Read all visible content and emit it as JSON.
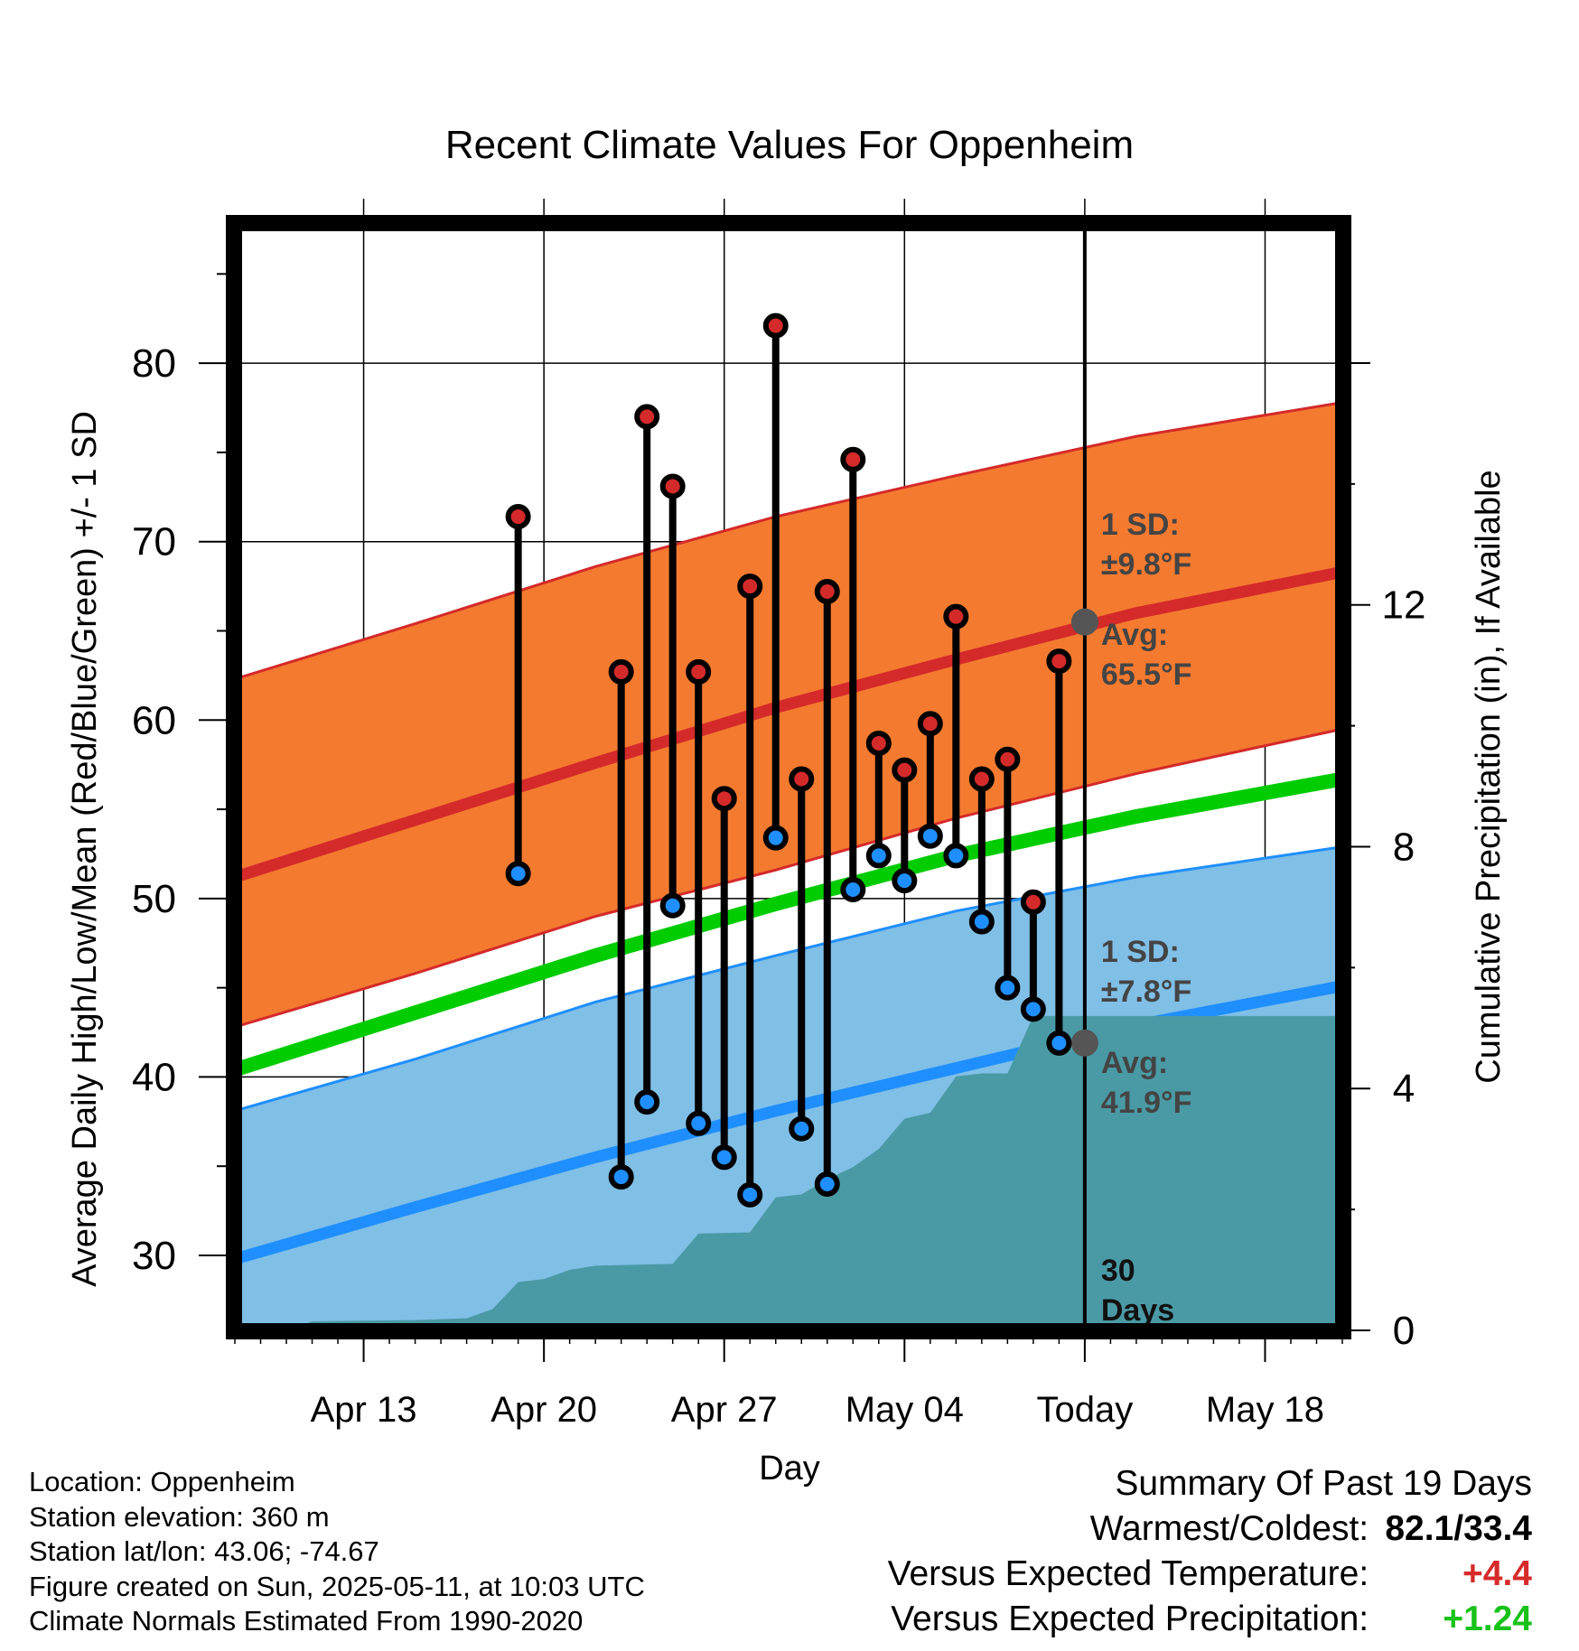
{
  "chart_data": {
    "type": "line",
    "title": "Recent Climate Values For Oppenheim",
    "xlabel": "Day",
    "ylabel": "Average Daily High/Low/Mean (Red/Blue/Green) +/- 1 SD",
    "y2label": "Cumulative Precipitation (in), If Available",
    "ylim": [
      25.8,
      87.8
    ],
    "y2lim": [
      0,
      18.3
    ],
    "yticks": [
      30,
      40,
      50,
      60,
      70,
      80
    ],
    "y2ticks": [
      0,
      4,
      8,
      12
    ],
    "xlim": [
      "2025-04-08",
      "2025-05-21"
    ],
    "xticks": [
      {
        "date": "2025-04-13",
        "label": "Apr 13"
      },
      {
        "date": "2025-04-20",
        "label": "Apr 20"
      },
      {
        "date": "2025-04-27",
        "label": "Apr 27"
      },
      {
        "date": "2025-05-04",
        "label": "May 04"
      },
      {
        "date": "2025-05-11",
        "label": "Today"
      },
      {
        "date": "2025-05-18",
        "label": "May 18"
      }
    ],
    "grid": true,
    "normals": {
      "dates": [
        "2025-04-08",
        "2025-04-15",
        "2025-04-22",
        "2025-04-29",
        "2025-05-06",
        "2025-05-13",
        "2025-05-21"
      ],
      "high_mean": [
        51.2,
        54.4,
        57.6,
        60.7,
        63.4,
        66.0,
        68.3
      ],
      "high_sd_upper": [
        62.3,
        65.4,
        68.6,
        71.4,
        73.7,
        75.9,
        77.8
      ],
      "high_sd_lower": [
        42.8,
        45.8,
        49.0,
        51.6,
        54.5,
        57.0,
        59.5
      ],
      "mean": [
        40.4,
        43.6,
        46.8,
        49.7,
        52.4,
        54.6,
        56.7
      ],
      "low_mean": [
        29.8,
        32.7,
        35.5,
        38.1,
        40.5,
        42.9,
        45.1
      ],
      "low_sd_upper": [
        38.1,
        41.0,
        44.2,
        46.8,
        49.3,
        51.2,
        52.9
      ],
      "low_sd_lower": [
        21.6,
        24.6,
        27.6,
        30.4,
        32.8,
        35.4,
        38.3
      ]
    },
    "observations": {
      "dates": [
        "2025-04-19",
        "2025-04-23",
        "2025-04-24",
        "2025-04-25",
        "2025-04-26",
        "2025-04-27",
        "2025-04-28",
        "2025-04-29",
        "2025-04-30",
        "2025-05-01",
        "2025-05-02",
        "2025-05-03",
        "2025-05-04",
        "2025-05-05",
        "2025-05-06",
        "2025-05-07",
        "2025-05-08",
        "2025-05-09",
        "2025-05-10"
      ],
      "high": [
        71.4,
        62.7,
        77.0,
        73.1,
        62.7,
        55.6,
        67.5,
        82.1,
        56.7,
        67.2,
        74.6,
        58.7,
        57.2,
        59.8,
        65.8,
        56.7,
        57.8,
        49.8,
        63.3
      ],
      "low": [
        51.4,
        34.4,
        38.6,
        49.6,
        37.4,
        35.5,
        33.4,
        53.4,
        37.1,
        34.0,
        50.5,
        52.4,
        51.0,
        53.5,
        52.4,
        48.7,
        45.0,
        43.8,
        41.9
      ]
    },
    "precipitation": {
      "dates": [
        "2025-04-10",
        "2025-04-11",
        "2025-04-15",
        "2025-04-17",
        "2025-04-18",
        "2025-04-19",
        "2025-04-20",
        "2025-04-21",
        "2025-04-22",
        "2025-04-25",
        "2025-04-26",
        "2025-04-28",
        "2025-04-29",
        "2025-04-30",
        "2025-05-01",
        "2025-05-02",
        "2025-05-03",
        "2025-05-04",
        "2025-05-05",
        "2025-05-06",
        "2025-05-07",
        "2025-05-08",
        "2025-05-09",
        "2025-05-21"
      ],
      "cumulative": [
        0.0,
        0.15,
        0.17,
        0.2,
        0.35,
        0.8,
        0.85,
        1.0,
        1.07,
        1.1,
        1.6,
        1.62,
        2.2,
        2.25,
        2.5,
        2.7,
        3.0,
        3.5,
        3.6,
        4.2,
        4.25,
        4.25,
        5.2,
        5.2
      ]
    },
    "today": {
      "date": "2025-05-11",
      "high_avg": 65.5,
      "low_avg": 41.9
    },
    "annotations": {
      "high_sd_label": "1 SD:",
      "high_sd_value": "±9.8°F",
      "high_avg_label": "Avg:",
      "high_avg_value": "65.5°F",
      "low_sd_label": "1 SD:",
      "low_sd_value": "±7.8°F",
      "low_avg_label": "Avg:",
      "low_avg_value": "41.9°F",
      "window_count": "30",
      "window_unit": "Days"
    },
    "colors": {
      "high_band": "#f47a30",
      "high_line": "#d42a2a",
      "low_band": "#80bfe6",
      "low_line": "#1f8fff",
      "mean_line": "#00cc00",
      "precip": "#4a9aa5",
      "marker_high": "#d42a2a",
      "marker_low": "#1f8fff",
      "annotation_text": "#444444",
      "today_dot": "#555555"
    }
  },
  "info": {
    "location": "Location: Oppenheim",
    "elevation": "Station elevation: 360 m",
    "latlon": "Station lat/lon: 43.06; -74.67",
    "created": "Figure created on Sun, 2025-05-11, at 10:03 UTC",
    "normals": "Climate Normals Estimated From 1990-2020"
  },
  "summary": {
    "title": "Summary Of Past 19 Days",
    "warm_label": "Warmest/Coldest:",
    "warm_value": "82.1/33.4",
    "temp_label": "Versus Expected Temperature:",
    "temp_value": "+4.4",
    "prcp_label": "Versus Expected Precipitation:",
    "prcp_value": "+1.24"
  }
}
